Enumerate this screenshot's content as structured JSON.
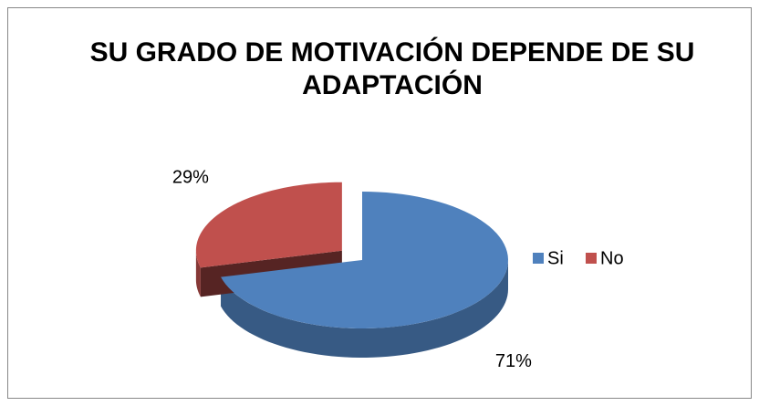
{
  "chart_data": {
    "type": "pie",
    "title": "SU GRADO DE MOTIVACIÓN DEPENDE DE SU ADAPTACIÓN",
    "categories": [
      "Si",
      "No"
    ],
    "values": [
      71,
      29
    ],
    "value_labels": [
      "71%",
      "29%"
    ],
    "colors": [
      "#4f81bd",
      "#c0504d"
    ],
    "legend": "right",
    "exploded": [
      false,
      true
    ]
  }
}
